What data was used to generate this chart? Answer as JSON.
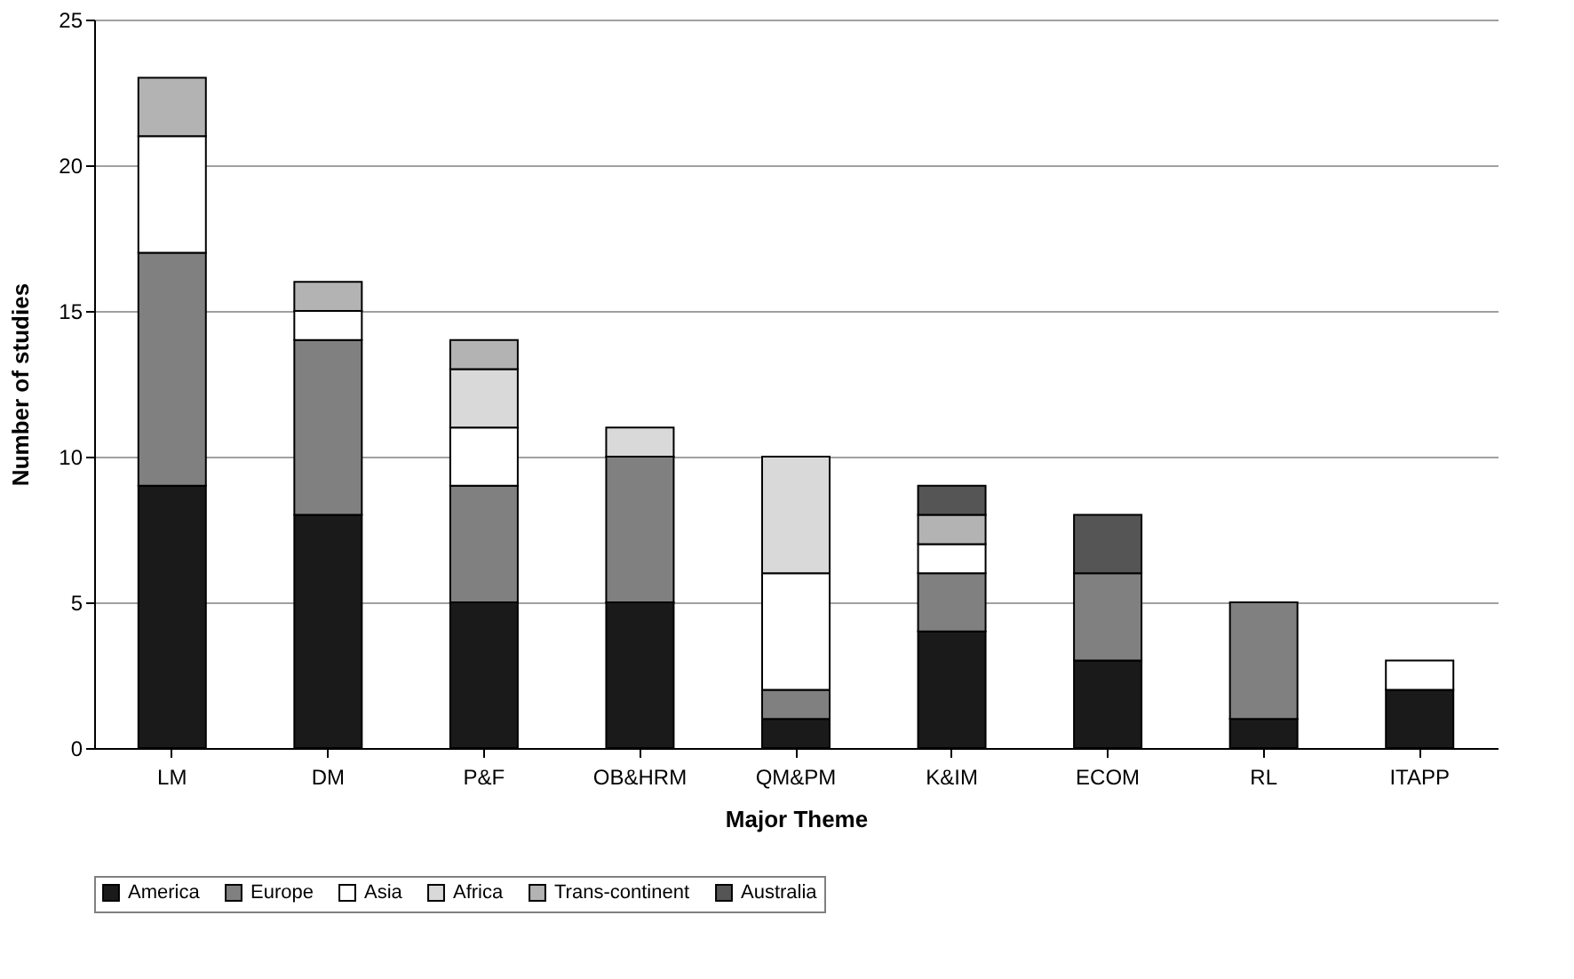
{
  "chart_data": {
    "type": "bar",
    "stacked": true,
    "xlabel": "Major Theme",
    "ylabel": "Number of studies",
    "categories": [
      "LM",
      "DM",
      "P&F",
      "OB&HRM",
      "QM&PM",
      "K&IM",
      "ECOM",
      "RL",
      "ITAPP"
    ],
    "series": [
      {
        "name": "America",
        "color": "#1a1a1a",
        "values": [
          9,
          8,
          5,
          5,
          1,
          4,
          3,
          1,
          2
        ]
      },
      {
        "name": "Europe",
        "color": "#808080",
        "values": [
          8,
          6,
          4,
          5,
          1,
          2,
          3,
          4,
          0
        ]
      },
      {
        "name": "Asia",
        "color": "#ffffff",
        "values": [
          4,
          1,
          2,
          0,
          4,
          1,
          0,
          0,
          1
        ]
      },
      {
        "name": "Africa",
        "color": "#d9d9d9",
        "values": [
          0,
          0,
          2,
          1,
          4,
          0,
          0,
          0,
          0
        ]
      },
      {
        "name": "Trans-continent",
        "color": "#b3b3b3",
        "values": [
          2,
          1,
          1,
          0,
          0,
          1,
          0,
          0,
          0
        ]
      },
      {
        "name": "Australia",
        "color": "#555555",
        "values": [
          0,
          0,
          0,
          0,
          0,
          1,
          2,
          0,
          0
        ]
      }
    ],
    "ylim": [
      0,
      25
    ],
    "yticks": [
      0,
      5,
      10,
      15,
      20,
      25
    ],
    "grid": "y",
    "legend": "bottom"
  }
}
